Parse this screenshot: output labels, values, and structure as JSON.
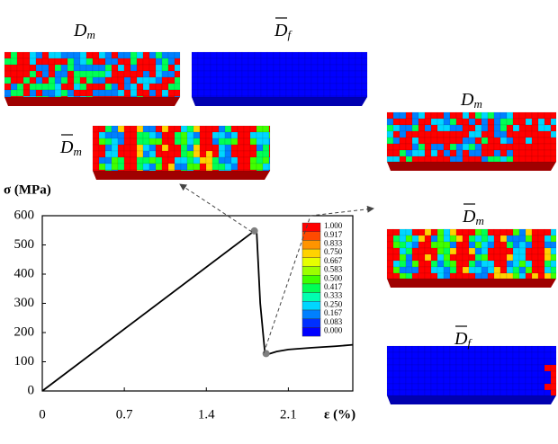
{
  "chart_data": {
    "type": "line",
    "y_label": "σ (MPa)",
    "x_label": "ε (%)",
    "xlim": [
      0,
      2.65
    ],
    "xticks": [
      0,
      0.7,
      1.4,
      2.1
    ],
    "ylim": [
      0,
      600
    ],
    "yticks": [
      0,
      100,
      200,
      300,
      400,
      500,
      600
    ],
    "series": [
      {
        "color": "#000000",
        "x": [
          0,
          1.81,
          1.83,
          1.86,
          1.9,
          1.92,
          2.0,
          2.1,
          2.3,
          2.5,
          2.65
        ],
        "values": [
          0,
          548,
          540,
          300,
          130,
          125,
          135,
          142,
          148,
          153,
          158
        ]
      }
    ],
    "points": {
      "color": "#7f7f7f",
      "x": [
        1.81,
        1.91
      ],
      "values": [
        548,
        128
      ]
    },
    "colorbar": {
      "labels": [
        "1.000",
        "0.917",
        "0.833",
        "0.750",
        "0.667",
        "0.583",
        "0.500",
        "0.417",
        "0.333",
        "0.250",
        "0.167",
        "0.083",
        "0.000"
      ],
      "colors": [
        "#ff0000",
        "#ff4a00",
        "#ff9400",
        "#ffd200",
        "#e6ff00",
        "#9cff00",
        "#3fff00",
        "#00ff55",
        "#00ffb0",
        "#00d6ff",
        "#0080ff",
        "#0030ff",
        "#0000ff"
      ]
    },
    "panels": [
      {
        "symbol": "D",
        "subscript": "m"
      },
      {
        "symbol": "D",
        "subscript": "f"
      },
      {
        "symbol": "D",
        "subscript": "m"
      },
      {
        "symbol": "D",
        "subscript": "m"
      },
      {
        "symbol": "D",
        "subscript": "m"
      },
      {
        "symbol": "D",
        "subscript": "f"
      }
    ]
  }
}
